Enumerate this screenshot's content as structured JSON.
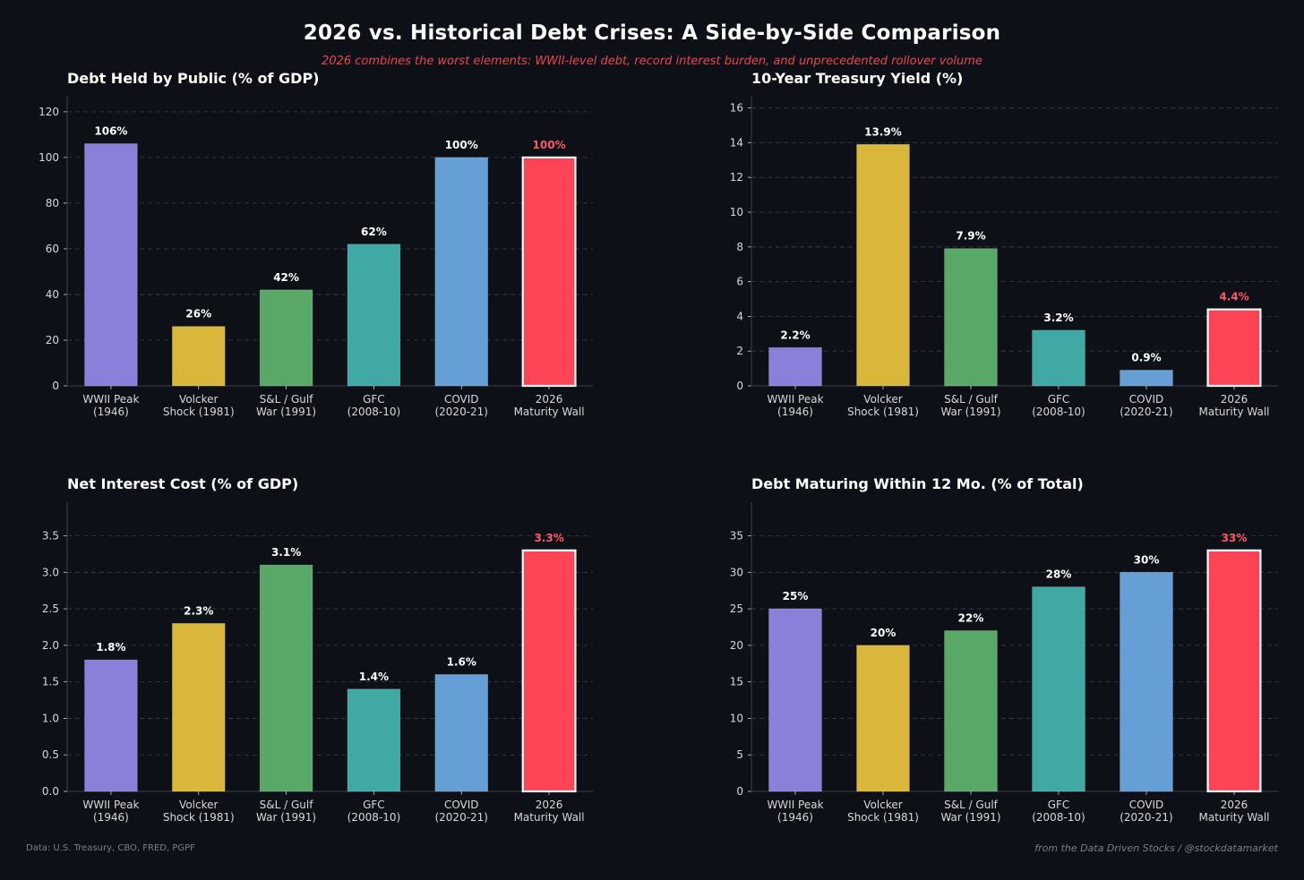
{
  "title": "2026 vs. Historical Debt Crises: A Side-by-Side Comparison",
  "subtitle": "2026 combines the worst elements: WWII-level debt, record interest burden, and unprecedented rollover volume",
  "footer": {
    "source": "Data: U.S. Treasury, CBO, FRED, PGPF",
    "credit": "from the Data Driven Stocks / @stockdatamarket"
  },
  "colors": {
    "background": "#0d1017",
    "bars": [
      "#8b80d9",
      "#d9b73a",
      "#5aa867",
      "#40a9a3",
      "#669ed6",
      "#ff4455"
    ],
    "highlight_label": "#ff5a66",
    "grid": "#3a3f4a"
  },
  "chart_data": [
    {
      "type": "bar",
      "title": "Debt Held by Public (% of GDP)",
      "categories": [
        [
          "WWII Peak",
          "(1946)"
        ],
        [
          "Volcker",
          "Shock (1981)"
        ],
        [
          "S&L / Gulf",
          "War (1991)"
        ],
        [
          "GFC",
          "(2008-10)"
        ],
        [
          "COVID",
          "(2020-21)"
        ],
        [
          "2026",
          "Maturity Wall"
        ]
      ],
      "values": [
        106,
        26,
        42,
        62,
        100,
        100
      ],
      "labels": [
        "106%",
        "26%",
        "42%",
        "62%",
        "100%",
        "100%"
      ],
      "ylim": [
        0,
        127
      ],
      "yticks": [
        0,
        20,
        40,
        60,
        80,
        100,
        120
      ],
      "tick_decimals": 0,
      "highlight_index": 5
    },
    {
      "type": "bar",
      "title": "10-Year Treasury Yield (%)",
      "categories": [
        [
          "WWII Peak",
          "(1946)"
        ],
        [
          "Volcker",
          "Shock (1981)"
        ],
        [
          "S&L / Gulf",
          "War (1991)"
        ],
        [
          "GFC",
          "(2008-10)"
        ],
        [
          "COVID",
          "(2020-21)"
        ],
        [
          "2026",
          "Maturity Wall"
        ]
      ],
      "values": [
        2.2,
        13.9,
        7.9,
        3.2,
        0.9,
        4.4
      ],
      "labels": [
        "2.2%",
        "13.9%",
        "7.9%",
        "3.2%",
        "0.9%",
        "4.4%"
      ],
      "ylim": [
        0,
        16.7
      ],
      "yticks": [
        0,
        2,
        4,
        6,
        8,
        10,
        12,
        14,
        16
      ],
      "tick_decimals": 0,
      "highlight_index": 5
    },
    {
      "type": "bar",
      "title": "Net Interest Cost (% of GDP)",
      "categories": [
        [
          "WWII Peak",
          "(1946)"
        ],
        [
          "Volcker",
          "Shock (1981)"
        ],
        [
          "S&L / Gulf",
          "War (1991)"
        ],
        [
          "GFC",
          "(2008-10)"
        ],
        [
          "COVID",
          "(2020-21)"
        ],
        [
          "2026",
          "Maturity Wall"
        ]
      ],
      "values": [
        1.8,
        2.3,
        3.1,
        1.4,
        1.6,
        3.3
      ],
      "labels": [
        "1.8%",
        "2.3%",
        "3.1%",
        "1.4%",
        "1.6%",
        "3.3%"
      ],
      "ylim": [
        0,
        3.96
      ],
      "yticks": [
        0,
        0.5,
        1.0,
        1.5,
        2.0,
        2.5,
        3.0,
        3.5
      ],
      "tick_decimals": 1,
      "highlight_index": 5
    },
    {
      "type": "bar",
      "title": "Debt Maturing Within 12 Mo. (% of Total)",
      "categories": [
        [
          "WWII Peak",
          "(1946)"
        ],
        [
          "Volcker",
          "Shock (1981)"
        ],
        [
          "S&L / Gulf",
          "War (1991)"
        ],
        [
          "GFC",
          "(2008-10)"
        ],
        [
          "COVID",
          "(2020-21)"
        ],
        [
          "2026",
          "Maturity Wall"
        ]
      ],
      "values": [
        25,
        20,
        22,
        28,
        30,
        33
      ],
      "labels": [
        "25%",
        "20%",
        "22%",
        "28%",
        "30%",
        "33%"
      ],
      "ylim": [
        0,
        39.6
      ],
      "yticks": [
        0,
        5,
        10,
        15,
        20,
        25,
        30,
        35
      ],
      "tick_decimals": 0,
      "highlight_index": 5
    }
  ]
}
